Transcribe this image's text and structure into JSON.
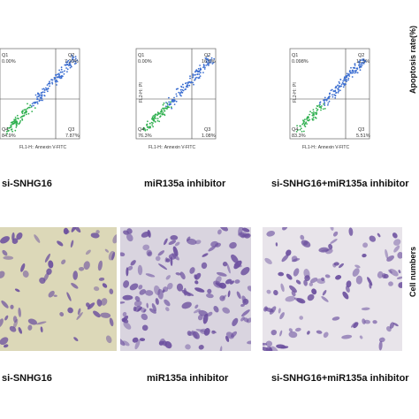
{
  "flow_panels": [
    {
      "q1": "Q1",
      "q1_val": "0.00%",
      "q2": "Q2",
      "q2_val": "7.20%",
      "q3": "Q3",
      "q3_val": "7.87%",
      "q4": "Q4",
      "q4_val": "84.9%",
      "xlabel": "FL1-H:: Annexin V-FITC",
      "ylabel": "FL2-H:: PI"
    },
    {
      "q1": "Q1",
      "q1_val": "0.00%",
      "q2": "Q2",
      "q2_val": "16.6%",
      "q3": "Q3",
      "q3_val": "1.08%",
      "q4": "Q4",
      "q4_val": "76.3%",
      "xlabel": "FL1-H:: Annexin V-FITC",
      "ylabel": "FL2-H:: PI"
    },
    {
      "q1": "Q1",
      "q1_val": "0.098%",
      "q2": "Q2",
      "q2_val": "11.1%",
      "q3": "Q3",
      "q3_val": "5.51%",
      "q4": "Q4",
      "q4_val": "83.3%",
      "xlabel": "FL1-H:: Annexin V-FITC",
      "ylabel": "FL2-H:: PI"
    }
  ],
  "captions_top": [
    "si-SNHG16",
    "miR135a inhibitor",
    "si-SNHG16+miR135a inhibitor"
  ],
  "captions_bottom": [
    "si-SNHG16",
    "miR135a inhibitor",
    "si-SNHG16+miR135a inhibitor"
  ],
  "side_labels": {
    "apoptosis": "Apoptosis rate(%)",
    "cells": "Cell numbers"
  },
  "colors": {
    "stain": "#6b4f9e",
    "bg_micro_1": "#dcd8b8",
    "bg_micro_2": "#d9d4df",
    "bg_micro_3": "#e8e4ea",
    "density_low": "#3d6fd1",
    "density_high": "#30b050"
  }
}
